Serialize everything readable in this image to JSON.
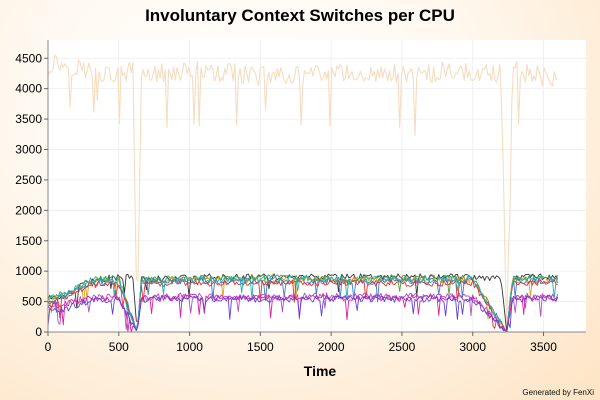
{
  "chart_data": {
    "type": "line",
    "title": "Involuntary Context Switches per CPU",
    "xlabel": "Time",
    "ylabel": "",
    "xlim": [
      0,
      3800
    ],
    "ylim": [
      0,
      4800
    ],
    "x_ticks": [
      0,
      500,
      1000,
      1500,
      2000,
      2500,
      3000,
      3500
    ],
    "y_ticks": [
      0,
      500,
      1000,
      1500,
      2000,
      2500,
      3000,
      3500,
      4000,
      4500
    ],
    "grid": true,
    "legend": "none",
    "dips_at": [
      630,
      3240
    ],
    "series": [
      {
        "color": "#f6dcc0",
        "values": [
          [
            0,
            4300
          ],
          [
            30,
            4450
          ],
          [
            100,
            4400
          ],
          [
            200,
            4350
          ],
          [
            300,
            4300
          ],
          [
            400,
            4250
          ],
          [
            500,
            4200
          ],
          [
            600,
            4300
          ],
          [
            630,
            0
          ],
          [
            660,
            4250
          ],
          [
            800,
            4250
          ],
          [
            1000,
            4300
          ],
          [
            1200,
            4250
          ],
          [
            1400,
            4250
          ],
          [
            1500,
            4200
          ],
          [
            1600,
            4250
          ],
          [
            1800,
            4200
          ],
          [
            2000,
            4250
          ],
          [
            2200,
            4250
          ],
          [
            2400,
            4250
          ],
          [
            2600,
            4200
          ],
          [
            2800,
            4300
          ],
          [
            3000,
            4250
          ],
          [
            3200,
            4250
          ],
          [
            3240,
            0
          ],
          [
            3280,
            4300
          ],
          [
            3400,
            4250
          ],
          [
            3600,
            4150
          ]
        ]
      },
      {
        "color": "#333333",
        "values": [
          [
            0,
            550
          ],
          [
            100,
            600
          ],
          [
            200,
            700
          ],
          [
            300,
            850
          ],
          [
            500,
            900
          ],
          [
            600,
            900
          ],
          [
            630,
            0
          ],
          [
            660,
            870
          ],
          [
            1000,
            900
          ],
          [
            1500,
            910
          ],
          [
            2000,
            900
          ],
          [
            2500,
            910
          ],
          [
            3000,
            900
          ],
          [
            3200,
            900
          ],
          [
            3240,
            0
          ],
          [
            3280,
            900
          ],
          [
            3600,
            920
          ]
        ]
      },
      {
        "color": "#4aa03c",
        "values": [
          [
            0,
            560
          ],
          [
            100,
            620
          ],
          [
            200,
            720
          ],
          [
            300,
            860
          ],
          [
            500,
            880
          ],
          [
            630,
            0
          ],
          [
            660,
            860
          ],
          [
            1000,
            880
          ],
          [
            1500,
            890
          ],
          [
            2000,
            880
          ],
          [
            2500,
            890
          ],
          [
            3000,
            880
          ],
          [
            3240,
            0
          ],
          [
            3280,
            880
          ],
          [
            3600,
            890
          ]
        ]
      },
      {
        "color": "#e0a020",
        "values": [
          [
            0,
            520
          ],
          [
            100,
            580
          ],
          [
            200,
            700
          ],
          [
            300,
            830
          ],
          [
            500,
            850
          ],
          [
            630,
            0
          ],
          [
            660,
            840
          ],
          [
            1000,
            860
          ],
          [
            1500,
            850
          ],
          [
            2000,
            860
          ],
          [
            2500,
            850
          ],
          [
            3000,
            860
          ],
          [
            3240,
            0
          ],
          [
            3280,
            850
          ],
          [
            3600,
            860
          ]
        ]
      },
      {
        "color": "#3a7fd0",
        "values": [
          [
            0,
            500
          ],
          [
            100,
            560
          ],
          [
            200,
            680
          ],
          [
            300,
            800
          ],
          [
            500,
            830
          ],
          [
            630,
            0
          ],
          [
            660,
            820
          ],
          [
            1000,
            840
          ],
          [
            1500,
            830
          ],
          [
            2000,
            840
          ],
          [
            2500,
            830
          ],
          [
            3000,
            840
          ],
          [
            3240,
            0
          ],
          [
            3280,
            830
          ],
          [
            3600,
            840
          ]
        ]
      },
      {
        "color": "#e53030",
        "values": [
          [
            0,
            480
          ],
          [
            100,
            540
          ],
          [
            200,
            660
          ],
          [
            300,
            780
          ],
          [
            500,
            800
          ],
          [
            630,
            0
          ],
          [
            660,
            790
          ],
          [
            1000,
            810
          ],
          [
            1500,
            800
          ],
          [
            2000,
            810
          ],
          [
            2500,
            800
          ],
          [
            3000,
            810
          ],
          [
            3240,
            0
          ],
          [
            3280,
            800
          ],
          [
            3600,
            810
          ]
        ]
      },
      {
        "color": "#20b0b0",
        "values": [
          [
            0,
            540
          ],
          [
            100,
            600
          ],
          [
            200,
            710
          ],
          [
            300,
            840
          ],
          [
            500,
            860
          ],
          [
            630,
            0
          ],
          [
            660,
            850
          ],
          [
            1000,
            870
          ],
          [
            1500,
            860
          ],
          [
            2000,
            870
          ],
          [
            2500,
            860
          ],
          [
            3000,
            870
          ],
          [
            3240,
            0
          ],
          [
            3280,
            860
          ],
          [
            3600,
            870
          ]
        ]
      },
      {
        "color": "#b050c0",
        "values": [
          [
            0,
            420
          ],
          [
            100,
            470
          ],
          [
            200,
            520
          ],
          [
            300,
            560
          ],
          [
            500,
            580
          ],
          [
            630,
            0
          ],
          [
            660,
            570
          ],
          [
            1000,
            590
          ],
          [
            1500,
            580
          ],
          [
            2000,
            590
          ],
          [
            2500,
            580
          ],
          [
            3000,
            590
          ],
          [
            3240,
            0
          ],
          [
            3280,
            580
          ],
          [
            3600,
            590
          ]
        ]
      },
      {
        "color": "#e020a0",
        "values": [
          [
            0,
            400
          ],
          [
            100,
            450
          ],
          [
            200,
            500
          ],
          [
            300,
            540
          ],
          [
            500,
            560
          ],
          [
            630,
            0
          ],
          [
            660,
            550
          ],
          [
            1000,
            570
          ],
          [
            1500,
            560
          ],
          [
            2000,
            570
          ],
          [
            2500,
            560
          ],
          [
            3000,
            570
          ],
          [
            3240,
            0
          ],
          [
            3280,
            560
          ],
          [
            3600,
            570
          ]
        ]
      },
      {
        "color": "#6040e0",
        "values": [
          [
            0,
            330
          ],
          [
            100,
            360
          ],
          [
            200,
            450
          ],
          [
            300,
            520
          ],
          [
            500,
            540
          ],
          [
            630,
            0
          ],
          [
            660,
            530
          ],
          [
            1000,
            550
          ],
          [
            1500,
            540
          ],
          [
            2000,
            550
          ],
          [
            2500,
            540
          ],
          [
            3000,
            550
          ],
          [
            3240,
            0
          ],
          [
            3280,
            540
          ],
          [
            3600,
            550
          ]
        ]
      }
    ]
  },
  "footer": {
    "credit": "Generated by FenXi"
  }
}
